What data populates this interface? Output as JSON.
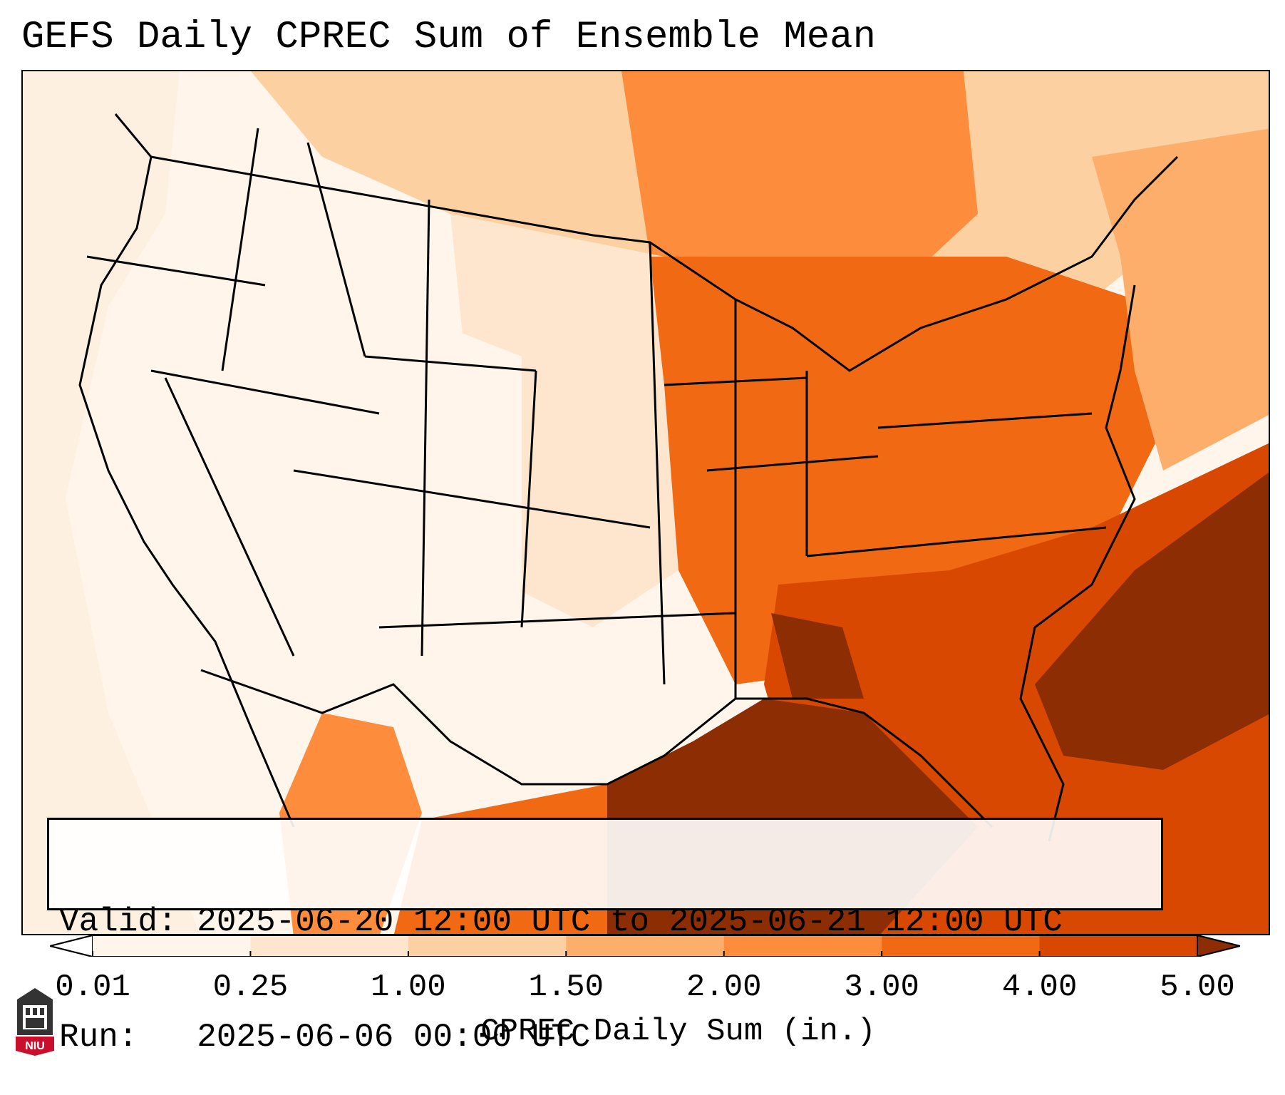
{
  "title": "GEFS Daily CPREC Sum of Ensemble Mean",
  "info": {
    "valid_label": "Valid:",
    "valid_value": "2025-06-20 12:00 UTC to 2025-06-21 12:00 UTC",
    "run_label": "Run:",
    "run_value": "2025-06-06 00:00 UTC"
  },
  "colorbar": {
    "label": "CPREC Daily Sum (in.)",
    "ticks": [
      "0.01",
      "0.25",
      "1.00",
      "1.50",
      "2.00",
      "3.00",
      "4.00",
      "5.00"
    ],
    "colors": [
      "#fff5eb",
      "#fee6ce",
      "#fdd0a2",
      "#fdae6b",
      "#fd8d3c",
      "#f16913",
      "#d94801",
      "#8c2d04"
    ],
    "under_color": "#ffffff",
    "over_color": "#7f2704",
    "extend": "both"
  },
  "logo": {
    "text": "NIU",
    "color": "#c8102e",
    "icon": "university-building-icon"
  }
}
